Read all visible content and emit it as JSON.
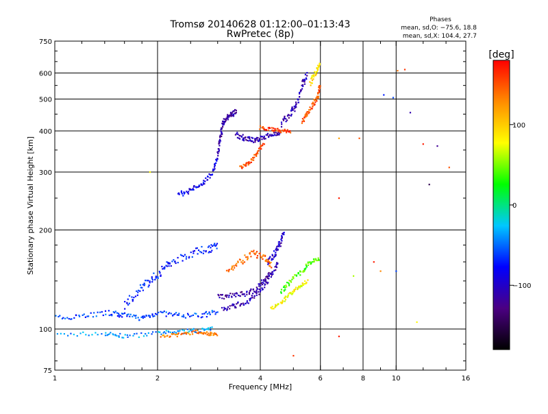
{
  "chart_data": {
    "type": "scatter",
    "title": "Tromsø 20140628 01:12:00–01:13:43",
    "subtitle": "RwPretec (8p)",
    "xlabel": "Frequency [MHz]",
    "ylabel": "Stationary phase Virtual Height [km]",
    "x_scale": "log",
    "y_scale": "log",
    "xlim": [
      1,
      16
    ],
    "ylim": [
      75,
      750
    ],
    "x_ticks": [
      1,
      2,
      4,
      6,
      8,
      10,
      16
    ],
    "x_tick_labels": [
      "1",
      "2",
      "4",
      "6",
      "8",
      "10",
      "16"
    ],
    "x_gridlines": [
      2,
      4,
      6,
      8,
      10
    ],
    "y_ticks": [
      75,
      100,
      200,
      300,
      400,
      500,
      600,
      750
    ],
    "y_tick_labels": [
      "75",
      "100",
      "200",
      "300",
      "400",
      "500",
      "600",
      "750"
    ],
    "y_gridlines": [
      100,
      200,
      300,
      400,
      500,
      600
    ],
    "grid": true,
    "stats": {
      "heading": "Phases",
      "line_o": "mean, sd,O: −75.6, 18.8",
      "line_x": "mean, sd,X: 104.4, 27.7"
    },
    "colorbar": {
      "label": "[deg]",
      "range": [
        -180,
        180
      ],
      "ticks": [
        100,
        0,
        -100
      ],
      "tick_labels": [
        "100",
        "0",
        "−100"
      ],
      "colors": [
        "#000000",
        "#4b0082",
        "#0000ff",
        "#00c8ff",
        "#00ff00",
        "#ffff00",
        "#ff8c00",
        "#ff0000"
      ]
    },
    "traces": [
      {
        "x": [
          1.0,
          1.4,
          1.6,
          2.0,
          2.3,
          2.6,
          2.9
        ],
        "y": [
          96,
          97,
          95,
          97,
          98,
          99,
          100
        ],
        "phase": -40,
        "spread": 2.5
      },
      {
        "x": [
          1.0,
          1.2,
          1.45,
          1.6,
          1.8,
          2.0,
          2.3,
          2.7,
          3.0
        ],
        "y": [
          108,
          110,
          112,
          110,
          108,
          112,
          110,
          110,
          113
        ],
        "phase": -60,
        "spread": 3
      },
      {
        "x": [
          1.6,
          1.75,
          1.9,
          2.05,
          2.2,
          2.5,
          2.8,
          3.0
        ],
        "y": [
          118,
          130,
          140,
          150,
          160,
          170,
          175,
          180
        ],
        "phase": -70,
        "spread": 5
      },
      {
        "x": [
          2.05,
          2.3,
          2.6,
          2.8,
          3.0
        ],
        "y": [
          95,
          96,
          98,
          97,
          96
        ],
        "phase": 135,
        "spread": 2
      },
      {
        "x": [
          3.0,
          3.3,
          3.6,
          3.9,
          4.1,
          4.3
        ],
        "y": [
          125,
          127,
          128,
          132,
          140,
          150
        ],
        "phase": -115,
        "spread": 3
      },
      {
        "x": [
          3.1,
          3.4,
          3.7,
          4.0,
          4.3,
          4.5
        ],
        "y": [
          115,
          118,
          122,
          130,
          145,
          160
        ],
        "phase": -110,
        "spread": 3
      },
      {
        "x": [
          4.2,
          4.4,
          4.55,
          4.7
        ],
        "y": [
          160,
          170,
          180,
          200
        ],
        "phase": -100,
        "spread": 4
      },
      {
        "x": [
          4.3,
          4.6,
          4.9,
          5.2,
          5.5
        ],
        "y": [
          115,
          120,
          128,
          135,
          140
        ],
        "phase": 80,
        "spread": 2
      },
      {
        "x": [
          4.6,
          4.9,
          5.3,
          5.6,
          6.0
        ],
        "y": [
          130,
          140,
          150,
          160,
          165
        ],
        "phase": 40,
        "spread": 3
      },
      {
        "x": [
          3.2,
          3.5,
          3.8,
          4.1,
          4.3
        ],
        "y": [
          150,
          160,
          170,
          165,
          155
        ],
        "phase": 140,
        "spread": 4
      },
      {
        "x": [
          2.3,
          2.5,
          2.7,
          2.9,
          3.0
        ],
        "y": [
          255,
          265,
          275,
          300,
          330
        ],
        "phase": -85,
        "spread": 3
      },
      {
        "x": [
          3.0,
          3.05,
          3.1,
          3.2,
          3.3,
          3.4
        ],
        "y": [
          340,
          380,
          420,
          440,
          450,
          460
        ],
        "phase": -115,
        "spread": 3
      },
      {
        "x": [
          3.4,
          3.6,
          3.8,
          4.0,
          4.3,
          4.6
        ],
        "y": [
          390,
          380,
          375,
          380,
          390,
          395
        ],
        "phase": -110,
        "spread": 3
      },
      {
        "x": [
          3.5,
          3.7,
          3.9,
          4.1
        ],
        "y": [
          310,
          320,
          340,
          370
        ],
        "phase": 150,
        "spread": 2
      },
      {
        "x": [
          4.0,
          4.3,
          4.6,
          4.9
        ],
        "y": [
          410,
          405,
          400,
          400
        ],
        "phase": 160,
        "spread": 2
      },
      {
        "x": [
          4.6,
          4.9,
          5.1,
          5.3,
          5.5
        ],
        "y": [
          420,
          450,
          480,
          550,
          600
        ],
        "phase": -110,
        "spread": 4
      },
      {
        "x": [
          5.3,
          5.5,
          5.7,
          5.9,
          6.0
        ],
        "y": [
          430,
          450,
          480,
          510,
          550
        ],
        "phase": 150,
        "spread": 3
      },
      {
        "x": [
          5.6,
          5.8,
          6.0
        ],
        "y": [
          560,
          600,
          630
        ],
        "phase": 90,
        "spread": 4
      }
    ],
    "scattered_points": [
      {
        "x": 9.2,
        "y": 515,
        "phase": -70
      },
      {
        "x": 9.8,
        "y": 505,
        "phase": -60
      },
      {
        "x": 10.1,
        "y": 610,
        "phase": 140
      },
      {
        "x": 10.6,
        "y": 615,
        "phase": 160
      },
      {
        "x": 11.0,
        "y": 455,
        "phase": -110
      },
      {
        "x": 12.0,
        "y": 365,
        "phase": 170
      },
      {
        "x": 13.2,
        "y": 360,
        "phase": -120
      },
      {
        "x": 14.3,
        "y": 310,
        "phase": 150
      },
      {
        "x": 12.5,
        "y": 275,
        "phase": -150
      },
      {
        "x": 7.8,
        "y": 380,
        "phase": 150
      },
      {
        "x": 6.8,
        "y": 380,
        "phase": 120
      },
      {
        "x": 6.8,
        "y": 250,
        "phase": 170
      },
      {
        "x": 8.6,
        "y": 160,
        "phase": 170
      },
      {
        "x": 9.0,
        "y": 150,
        "phase": 130
      },
      {
        "x": 10.0,
        "y": 150,
        "phase": -60
      },
      {
        "x": 11.5,
        "y": 105,
        "phase": 80
      },
      {
        "x": 6.8,
        "y": 95,
        "phase": 170
      },
      {
        "x": 5.0,
        "y": 83,
        "phase": 160
      },
      {
        "x": 1.9,
        "y": 300,
        "phase": 80
      },
      {
        "x": 7.5,
        "y": 145,
        "phase": 60
      }
    ]
  }
}
